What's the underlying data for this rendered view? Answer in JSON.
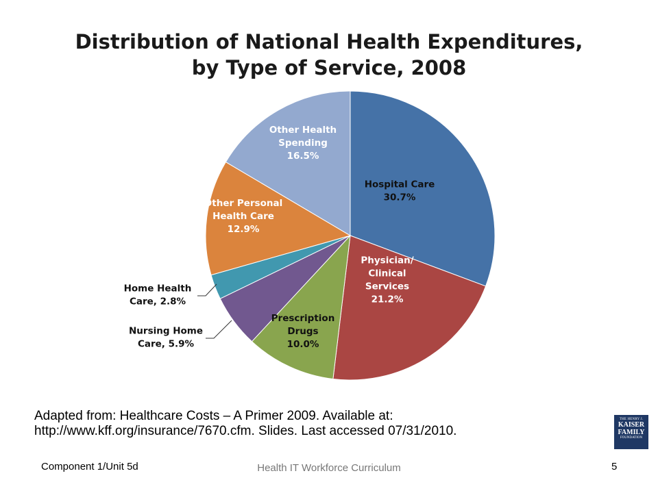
{
  "title": {
    "line1": "Distribution of National Health Expenditures,",
    "line2": "by Type of Service, 2008"
  },
  "chart_data": {
    "type": "pie",
    "title": "Distribution of National Health Expenditures, by Type of Service, 2008",
    "slices": [
      {
        "label_lines": [
          "Hospital Care",
          "30.7%"
        ],
        "category": "Hospital Care",
        "value": 30.7,
        "color": "#4572a7"
      },
      {
        "label_lines": [
          "Physician/",
          "Clinical",
          "Services",
          "21.2%"
        ],
        "category": "Physician/ Clinical Services",
        "value": 21.2,
        "color": "#aa4643"
      },
      {
        "label_lines": [
          "Prescription",
          "Drugs",
          "10.0%"
        ],
        "category": "Prescription Drugs",
        "value": 10.0,
        "color": "#89a54e"
      },
      {
        "label_lines": [
          "Nursing Home",
          "Care, 5.9%"
        ],
        "category": "Nursing Home Care",
        "value": 5.9,
        "color": "#71588f"
      },
      {
        "label_lines": [
          "Home Health",
          "Care, 2.8%"
        ],
        "category": "Home Health Care",
        "value": 2.8,
        "color": "#4198af"
      },
      {
        "label_lines": [
          "Other Personal",
          "Health Care",
          "12.9%"
        ],
        "category": "Other Personal Health Care",
        "value": 12.9,
        "color": "#db843d"
      },
      {
        "label_lines": [
          "Other Health",
          "Spending",
          "16.5%"
        ],
        "category": "Other Health Spending",
        "value": 16.5,
        "color": "#93a9cf"
      }
    ]
  },
  "source": {
    "line1": "Adapted from: Healthcare Costs – A Primer 2009. Available at:",
    "line2": "http://www.kff.org/insurance/7670.cfm. Slides. Last accessed 07/31/2010."
  },
  "footer": {
    "left": "Component 1/Unit 5d",
    "center": "Health IT Workforce Curriculum",
    "page": "5"
  },
  "logo": {
    "line1": "THE HENRY J.",
    "line2a": "KAISER",
    "line2b": "FAMILY",
    "line3": "FOUNDATION"
  }
}
